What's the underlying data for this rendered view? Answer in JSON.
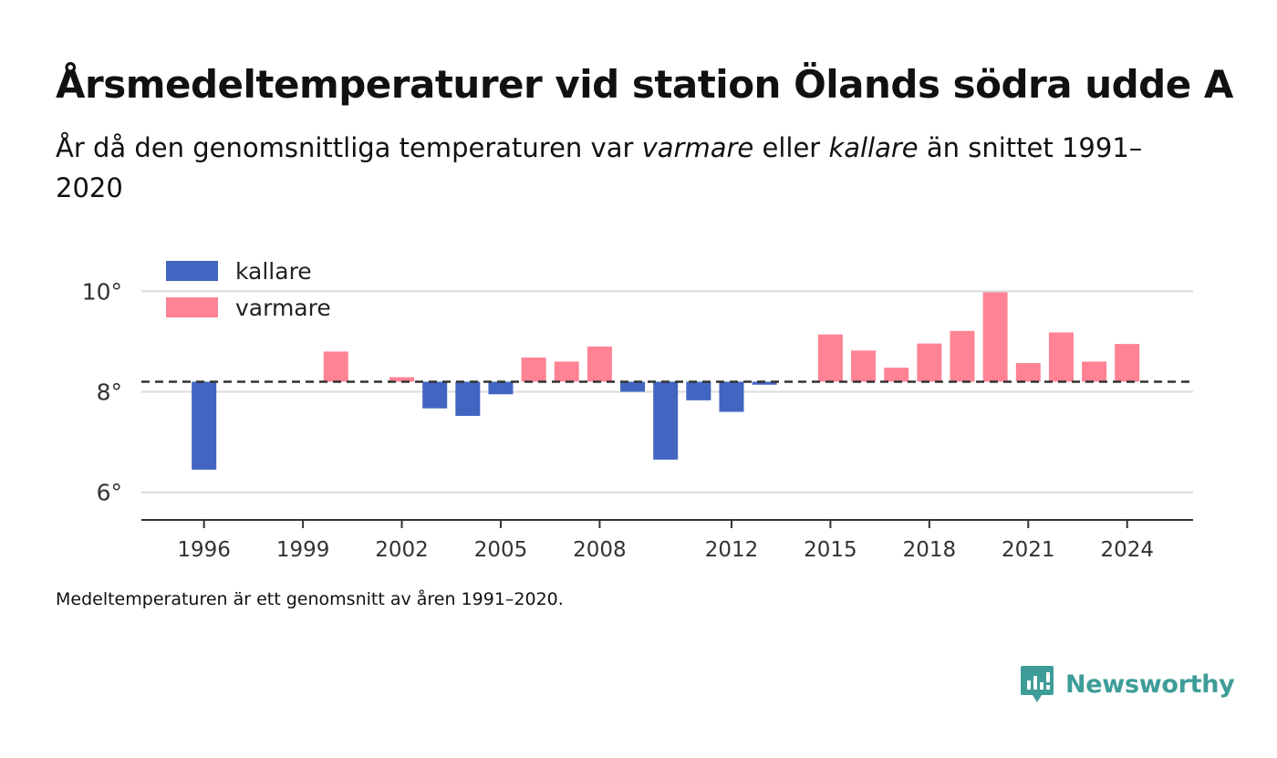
{
  "header": {
    "title": "Årsmedeltemperaturer vid station Ölands södra udde A",
    "subtitle_part1": "År då den genomsnittliga temperaturen var ",
    "subtitle_warm": "varmare",
    "subtitle_part2": " eller ",
    "subtitle_cold": "kallare",
    "subtitle_part3": " än snittet 1991–2020"
  },
  "chart_data": {
    "type": "bar",
    "baseline": 8.2,
    "baseline_style": "dashed",
    "ylim": [
      5.45,
      10.35
    ],
    "yticks": [
      6,
      8,
      10
    ],
    "ytick_labels": [
      "6°",
      "8°",
      "10°"
    ],
    "xlim": [
      1994.1,
      2026.0
    ],
    "xticks": [
      1996,
      1999,
      2002,
      2005,
      2008,
      2012,
      2015,
      2018,
      2021,
      2024
    ],
    "xtick_labels": [
      "1996",
      "1999",
      "2002",
      "2005",
      "2008",
      "2012",
      "2015",
      "2018",
      "2021",
      "2024"
    ],
    "grid": true,
    "legend_position": "top-left",
    "legend": [
      {
        "label": "kallare",
        "color": "#4165c0"
      },
      {
        "label": "varmare",
        "color": "#ff8394"
      }
    ],
    "colors": {
      "cold": "#4165c0",
      "warm": "#ff8394"
    },
    "years": [
      1996,
      2000,
      2002,
      2003,
      2004,
      2005,
      2006,
      2007,
      2008,
      2009,
      2010,
      2011,
      2012,
      2013,
      2015,
      2016,
      2017,
      2018,
      2019,
      2020,
      2021,
      2022,
      2023,
      2024
    ],
    "values": [
      6.45,
      8.8,
      8.29,
      7.67,
      7.52,
      7.95,
      8.68,
      8.6,
      8.9,
      8.0,
      6.65,
      7.83,
      7.6,
      8.14,
      9.14,
      8.82,
      8.48,
      8.96,
      9.21,
      9.98,
      8.57,
      9.18,
      8.6,
      8.95
    ]
  },
  "footer": {
    "note": "Medeltemperaturen är ett genomsnitt av åren 1991–2020.",
    "brand": "Newsworthy",
    "brand_color": "#3e9d98"
  }
}
